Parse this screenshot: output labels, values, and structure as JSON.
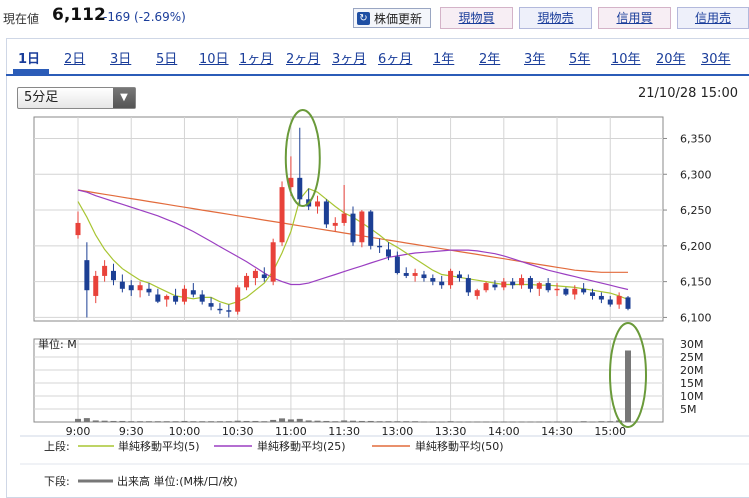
{
  "header": {
    "price_label": "現在値",
    "price_value": "6,112",
    "price_change": "-169 (-2.69%)",
    "refresh_label": "株価更新",
    "trade_buttons": [
      "現物買",
      "現物売",
      "信用買",
      "信用売"
    ]
  },
  "tabs": [
    "1日",
    "2日",
    "3日",
    "5日",
    "10日",
    "1ヶ月",
    "2ヶ月",
    "3ヶ月",
    "6ヶ月",
    "1年",
    "2年",
    "3年",
    "5年",
    "10年",
    "20年",
    "30年"
  ],
  "controls": {
    "interval_select": "5分足",
    "datetime": "21/10/28 15:00"
  },
  "chart_data": {
    "type": "candlestick",
    "interval": "5分足",
    "x_ticks": [
      "9:00",
      "9:30",
      "10:00",
      "10:30",
      "11:00",
      "11:30",
      "13:00",
      "13:30",
      "14:00",
      "14:30",
      "15:00"
    ],
    "price_axis": {
      "ticks": [
        "6,350",
        "6,300",
        "6,250",
        "6,200",
        "6,150",
        "6,100"
      ],
      "ylim": [
        6095,
        6380
      ]
    },
    "volume_axis": {
      "label": "単位: M",
      "ticks": [
        "30M",
        "25M",
        "20M",
        "15M",
        "10M",
        "5M"
      ],
      "ylim": [
        0,
        30
      ]
    },
    "candles": [
      [
        6215,
        6248,
        6210,
        6232
      ],
      [
        6180,
        6205,
        6100,
        6138
      ],
      [
        6130,
        6165,
        6120,
        6158
      ],
      [
        6158,
        6180,
        6150,
        6172
      ],
      [
        6165,
        6175,
        6145,
        6152
      ],
      [
        6150,
        6160,
        6135,
        6140
      ],
      [
        6145,
        6152,
        6130,
        6138
      ],
      [
        6138,
        6150,
        6128,
        6145
      ],
      [
        6140,
        6148,
        6130,
        6135
      ],
      [
        6132,
        6140,
        6120,
        6122
      ],
      [
        6125,
        6132,
        6115,
        6130
      ],
      [
        6130,
        6140,
        6118,
        6122
      ],
      [
        6122,
        6145,
        6118,
        6140
      ],
      [
        6138,
        6148,
        6128,
        6132
      ],
      [
        6132,
        6138,
        6118,
        6122
      ],
      [
        6120,
        6128,
        6110,
        6115
      ],
      [
        6112,
        6120,
        6105,
        6110
      ],
      [
        6110,
        6118,
        6100,
        6108
      ],
      [
        6108,
        6145,
        6104,
        6142
      ],
      [
        6142,
        6162,
        6138,
        6158
      ],
      [
        6155,
        6168,
        6145,
        6165
      ],
      [
        6160,
        6170,
        6150,
        6155
      ],
      [
        6150,
        6210,
        6145,
        6205
      ],
      [
        6205,
        6290,
        6200,
        6282
      ],
      [
        6282,
        6325,
        6270,
        6295
      ],
      [
        6295,
        6365,
        6255,
        6265
      ],
      [
        6265,
        6280,
        6250,
        6255
      ],
      [
        6255,
        6270,
        6245,
        6262
      ],
      [
        6262,
        6265,
        6225,
        6230
      ],
      [
        6228,
        6240,
        6220,
        6232
      ],
      [
        6232,
        6285,
        6228,
        6245
      ],
      [
        6245,
        6255,
        6200,
        6205
      ],
      [
        6205,
        6250,
        6198,
        6248
      ],
      [
        6248,
        6250,
        6195,
        6200
      ],
      [
        6200,
        6210,
        6190,
        6198
      ],
      [
        6195,
        6205,
        6180,
        6185
      ],
      [
        6185,
        6192,
        6160,
        6162
      ],
      [
        6162,
        6170,
        6155,
        6158
      ],
      [
        6158,
        6168,
        6150,
        6162
      ],
      [
        6160,
        6165,
        6150,
        6155
      ],
      [
        6155,
        6160,
        6145,
        6150
      ],
      [
        6150,
        6158,
        6140,
        6145
      ],
      [
        6145,
        6168,
        6140,
        6165
      ],
      [
        6160,
        6165,
        6150,
        6155
      ],
      [
        6155,
        6160,
        6130,
        6135
      ],
      [
        6130,
        6140,
        6125,
        6138
      ],
      [
        6138,
        6150,
        6135,
        6148
      ],
      [
        6146,
        6152,
        6138,
        6142
      ],
      [
        6142,
        6155,
        6138,
        6150
      ],
      [
        6150,
        6155,
        6140,
        6145
      ],
      [
        6145,
        6160,
        6140,
        6155
      ],
      [
        6155,
        6158,
        6135,
        6140
      ],
      [
        6140,
        6150,
        6130,
        6148
      ],
      [
        6148,
        6155,
        6135,
        6138
      ],
      [
        6138,
        6148,
        6130,
        6140
      ],
      [
        6140,
        6142,
        6130,
        6132
      ],
      [
        6132,
        6145,
        6125,
        6140
      ],
      [
        6140,
        6148,
        6132,
        6135
      ],
      [
        6135,
        6140,
        6125,
        6130
      ],
      [
        6130,
        6135,
        6120,
        6125
      ],
      [
        6125,
        6130,
        6115,
        6118
      ],
      [
        6118,
        6135,
        6112,
        6130
      ],
      [
        6128,
        6130,
        6110,
        6112
      ]
    ],
    "volume": [
      1.2,
      1.5,
      0.6,
      0.5,
      0.4,
      0.4,
      0.3,
      0.3,
      0.3,
      0.3,
      0.3,
      0.3,
      0.4,
      0.3,
      0.3,
      0.3,
      0.3,
      0.3,
      0.5,
      0.4,
      0.4,
      0.3,
      0.8,
      1.4,
      1.0,
      1.2,
      0.6,
      0.5,
      0.4,
      0.3,
      0.6,
      0.5,
      0.4,
      0.4,
      0.3,
      0.3,
      0.3,
      0.3,
      0.3,
      0.2,
      0.2,
      0.2,
      0.3,
      0.2,
      0.2,
      0.2,
      0.2,
      0.2,
      0.2,
      0.2,
      0.2,
      0.2,
      0.2,
      0.2,
      0.2,
      0.2,
      0.2,
      0.3,
      0.2,
      0.3,
      0.3,
      0.6,
      27.5
    ],
    "ma5": [
      6262,
      6240,
      6215,
      6195,
      6180,
      6168,
      6160,
      6152,
      6148,
      6142,
      6136,
      6130,
      6128,
      6126,
      6128,
      6128,
      6122,
      6118,
      6122,
      6128,
      6138,
      6148,
      6165,
      6190,
      6220,
      6265,
      6280,
      6275,
      6265,
      6255,
      6246,
      6240,
      6232,
      6224,
      6215,
      6205,
      6198,
      6190,
      6182,
      6174,
      6166,
      6160,
      6158,
      6156,
      6154,
      6152,
      6150,
      6148,
      6146,
      6146,
      6146,
      6146,
      6145,
      6145,
      6144,
      6143,
      6142,
      6140,
      6138,
      6136,
      6134,
      6130,
      6125
    ],
    "ma25": [
      6278,
      6275,
      6270,
      6266,
      6262,
      6258,
      6254,
      6250,
      6246,
      6242,
      6237,
      6232,
      6226,
      6220,
      6213,
      6206,
      6199,
      6192,
      6185,
      6178,
      6170,
      6162,
      6155,
      6150,
      6146,
      6146,
      6148,
      6152,
      6156,
      6160,
      6164,
      6168,
      6172,
      6176,
      6180,
      6184,
      6186,
      6188,
      6190,
      6191,
      6192,
      6193,
      6194,
      6194,
      6194,
      6193,
      6191,
      6189,
      6186,
      6182,
      6178,
      6174,
      6170,
      6166,
      6163,
      6160,
      6157,
      6154,
      6151,
      6148,
      6145,
      6142,
      6139
    ],
    "ma50": [
      6278,
      6276,
      6274,
      6272,
      6270,
      6268,
      6266,
      6264,
      6262,
      6260,
      6258,
      6256,
      6254,
      6252,
      6250,
      6248,
      6246,
      6244,
      6242,
      6240,
      6238,
      6236,
      6234,
      6232,
      6230,
      6228,
      6226,
      6224,
      6222,
      6220,
      6218,
      6216,
      6214,
      6212,
      6210,
      6208,
      6206,
      6204,
      6202,
      6200,
      6198,
      6196,
      6194,
      6192,
      6190,
      6188,
      6186,
      6184,
      6182,
      6180,
      6178,
      6176,
      6174,
      6172,
      6170,
      6168,
      6166,
      6165,
      6164,
      6163,
      6163,
      6163,
      6163
    ],
    "legend": {
      "upper_label": "上段:",
      "ma5": "単純移動平均(5)",
      "ma25": "単純移動平均(25)",
      "ma50": "単純移動平均(50)",
      "lower_label": "下段:",
      "volume": "出来高 単位:(M株/口/枚)"
    },
    "colors": {
      "up": "#e8423a",
      "down": "#1c3f94",
      "ma5": "#a8c532",
      "ma25": "#9b3fc2",
      "ma50": "#e26b3c",
      "volume": "#777777",
      "highlight": "#6a9a3a"
    }
  }
}
